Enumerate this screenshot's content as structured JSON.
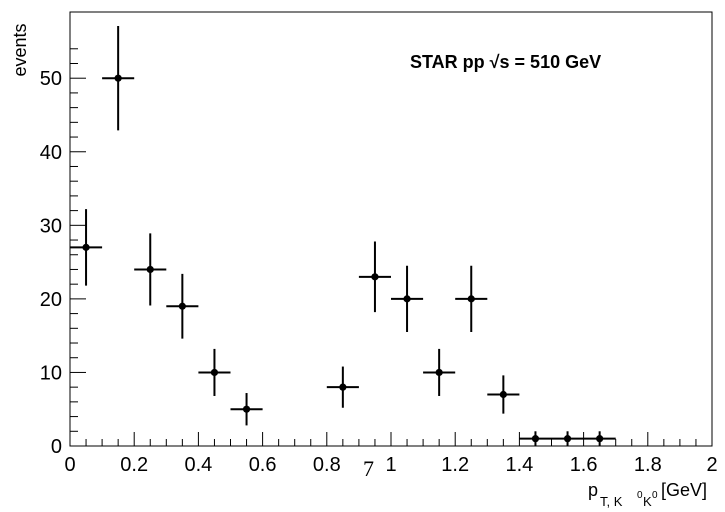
{
  "chart_data": {
    "type": "scatter",
    "annotation": "STAR pp  √s = 510 GeV",
    "xlabel_main": "p",
    "xlabel_sub": "T, K",
    "xlabel_sup": "0",
    "xlabel_sub2": "K",
    "xlabel_sup2": "0",
    "xlabel_unit": " [GeV]",
    "ylabel": "events",
    "xlim": [
      0,
      2
    ],
    "ylim": [
      0,
      59
    ],
    "xticks": [
      "0",
      "0.2",
      "0.4",
      "0.6",
      "0.8",
      "1",
      "1.2",
      "1.4",
      "1.6",
      "1.8",
      "2"
    ],
    "xtick_values": [
      0,
      0.2,
      0.4,
      0.6,
      0.8,
      1,
      1.2,
      1.4,
      1.6,
      1.8,
      2
    ],
    "yticks": [
      "0",
      "10",
      "20",
      "30",
      "40",
      "50"
    ],
    "ytick_values": [
      0,
      10,
      20,
      30,
      40,
      50
    ],
    "stray_mark": "7",
    "stray_mark_x": 0.93,
    "series": [
      {
        "points": [
          {
            "x": 0.05,
            "y": 27,
            "xerr": 0.05,
            "yerr_low": 5.2,
            "yerr_high": 5.2
          },
          {
            "x": 0.15,
            "y": 50,
            "xerr": 0.05,
            "yerr_low": 7.1,
            "yerr_high": 7.1
          },
          {
            "x": 0.25,
            "y": 24,
            "xerr": 0.05,
            "yerr_low": 4.9,
            "yerr_high": 4.9
          },
          {
            "x": 0.35,
            "y": 19,
            "xerr": 0.05,
            "yerr_low": 4.4,
            "yerr_high": 4.4
          },
          {
            "x": 0.45,
            "y": 10,
            "xerr": 0.05,
            "yerr_low": 3.2,
            "yerr_high": 3.2
          },
          {
            "x": 0.55,
            "y": 5,
            "xerr": 0.05,
            "yerr_low": 2.2,
            "yerr_high": 2.2
          },
          {
            "x": 0.85,
            "y": 8,
            "xerr": 0.05,
            "yerr_low": 2.8,
            "yerr_high": 2.8
          },
          {
            "x": 0.95,
            "y": 23,
            "xerr": 0.05,
            "yerr_low": 4.8,
            "yerr_high": 4.8
          },
          {
            "x": 1.05,
            "y": 20,
            "xerr": 0.05,
            "yerr_low": 4.5,
            "yerr_high": 4.5
          },
          {
            "x": 1.15,
            "y": 10,
            "xerr": 0.05,
            "yerr_low": 3.2,
            "yerr_high": 3.2
          },
          {
            "x": 1.25,
            "y": 20,
            "xerr": 0.05,
            "yerr_low": 4.5,
            "yerr_high": 4.5
          },
          {
            "x": 1.35,
            "y": 7,
            "xerr": 0.05,
            "yerr_low": 2.6,
            "yerr_high": 2.6
          },
          {
            "x": 1.45,
            "y": 1,
            "xerr": 0.05,
            "yerr_low": 1.0,
            "yerr_high": 1.0
          },
          {
            "x": 1.55,
            "y": 1,
            "xerr": 0.05,
            "yerr_low": 1.0,
            "yerr_high": 1.0
          },
          {
            "x": 1.65,
            "y": 1,
            "xerr": 0.05,
            "yerr_low": 1.0,
            "yerr_high": 1.0
          }
        ]
      }
    ],
    "grid": false,
    "legend": "none",
    "colors": {
      "marker": "#000000",
      "axis": "#000000"
    }
  }
}
